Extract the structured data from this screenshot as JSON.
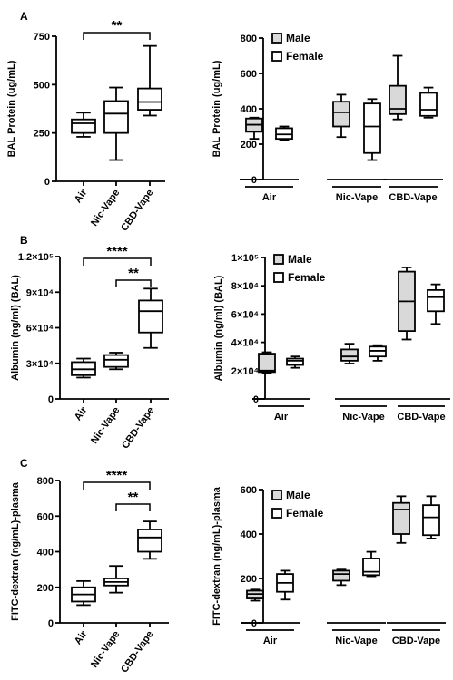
{
  "chart_data": [
    {
      "type": "box",
      "panel_label": "A",
      "ylabel": "BAL Protein (ug/mL)",
      "ylim": [
        0,
        750
      ],
      "yticks": [
        0,
        250,
        500,
        750
      ],
      "ytick_labels": [
        "0",
        "250",
        "500",
        "750"
      ],
      "categories": [
        "Air",
        "Nic-Vape",
        "CBD-Vape"
      ],
      "boxes": [
        {
          "min": 230,
          "q1": 250,
          "median": 300,
          "q3": 320,
          "max": 355
        },
        {
          "min": 110,
          "q1": 250,
          "median": 350,
          "q3": 415,
          "max": 485
        },
        {
          "min": 340,
          "q1": 370,
          "median": 410,
          "q3": 480,
          "max": 700
        }
      ],
      "significance": [
        {
          "from": 0,
          "to": 2,
          "label": "**"
        }
      ]
    },
    {
      "type": "box",
      "ylabel": "BAL Protein (ug/mL)",
      "ylim": [
        0,
        800
      ],
      "yticks": [
        0,
        200,
        400,
        600,
        800
      ],
      "ytick_labels": [
        "0",
        "200",
        "400",
        "600",
        "800"
      ],
      "groups": [
        "Air",
        "Nic-Vape",
        "CBD-Vape"
      ],
      "legend": [
        "Male",
        "Female"
      ],
      "series": [
        {
          "name": "Male",
          "boxes": [
            {
              "min": 230,
              "q1": 270,
              "median": 310,
              "q3": 345,
              "max": 350
            },
            {
              "min": 240,
              "q1": 300,
              "median": 380,
              "q3": 440,
              "max": 480
            },
            {
              "min": 340,
              "q1": 370,
              "median": 400,
              "q3": 530,
              "max": 700
            }
          ]
        },
        {
          "name": "Female",
          "boxes": [
            {
              "min": 225,
              "q1": 230,
              "median": 255,
              "q3": 290,
              "max": 300
            },
            {
              "min": 110,
              "q1": 150,
              "median": 300,
              "q3": 430,
              "max": 455
            },
            {
              "min": 350,
              "q1": 360,
              "median": 395,
              "q3": 490,
              "max": 520
            }
          ]
        }
      ]
    },
    {
      "type": "box",
      "panel_label": "B",
      "ylabel": "Albumin (ng/ml) (BAL)",
      "ylim": [
        0,
        120000
      ],
      "yticks": [
        0,
        30000,
        60000,
        90000,
        120000
      ],
      "ytick_labels": [
        "0",
        "3×10⁴",
        "6×10⁴",
        "9×10⁴",
        "1.2×10⁵"
      ],
      "categories": [
        "Air",
        "Nic-Vape",
        "CBD-Vape"
      ],
      "boxes": [
        {
          "min": 18000,
          "q1": 20000,
          "median": 25000,
          "q3": 31000,
          "max": 34000
        },
        {
          "min": 25000,
          "q1": 27000,
          "median": 33000,
          "q3": 37000,
          "max": 39000
        },
        {
          "min": 43000,
          "q1": 56000,
          "median": 74000,
          "q3": 83000,
          "max": 93000
        }
      ],
      "significance": [
        {
          "from": 0,
          "to": 2,
          "label": "****"
        },
        {
          "from": 1,
          "to": 2,
          "label": "**"
        }
      ]
    },
    {
      "type": "box",
      "ylabel": "Albumin (ng/ml) (BAL)",
      "ylim": [
        0,
        100000
      ],
      "yticks": [
        0,
        20000,
        40000,
        60000,
        80000,
        100000
      ],
      "ytick_labels": [
        "0",
        "2×10⁴",
        "4×10⁴",
        "6×10⁴",
        "8×10⁴",
        "1×10⁵"
      ],
      "groups": [
        "Air",
        "Nic-Vape",
        "CBD-Vape"
      ],
      "legend": [
        "Male",
        "Female"
      ],
      "series": [
        {
          "name": "Male",
          "boxes": [
            {
              "min": 18000,
              "q1": 19000,
              "median": 20000,
              "q3": 32000,
              "max": 33000
            },
            {
              "min": 25000,
              "q1": 27000,
              "median": 30000,
              "q3": 35000,
              "max": 39000
            },
            {
              "min": 42000,
              "q1": 48000,
              "median": 69000,
              "q3": 90000,
              "max": 93000
            }
          ]
        },
        {
          "name": "Female",
          "boxes": [
            {
              "min": 22000,
              "q1": 24000,
              "median": 27000,
              "q3": 28500,
              "max": 30000
            },
            {
              "min": 27000,
              "q1": 30000,
              "median": 34000,
              "q3": 37000,
              "max": 38000
            },
            {
              "min": 53000,
              "q1": 62000,
              "median": 72000,
              "q3": 77000,
              "max": 81000
            }
          ]
        }
      ]
    },
    {
      "type": "box",
      "panel_label": "C",
      "ylabel": "FITC-dextran (ng/mL)-plasma",
      "ylim": [
        0,
        800
      ],
      "yticks": [
        0,
        200,
        400,
        600,
        800
      ],
      "ytick_labels": [
        "0",
        "200",
        "400",
        "600",
        "800"
      ],
      "categories": [
        "Air",
        "Nic-Vape",
        "CBD-Vape"
      ],
      "boxes": [
        {
          "min": 100,
          "q1": 120,
          "median": 160,
          "q3": 200,
          "max": 235
        },
        {
          "min": 170,
          "q1": 210,
          "median": 230,
          "q3": 250,
          "max": 320
        },
        {
          "min": 360,
          "q1": 400,
          "median": 480,
          "q3": 525,
          "max": 570
        }
      ],
      "significance": [
        {
          "from": 0,
          "to": 2,
          "label": "****"
        },
        {
          "from": 1,
          "to": 2,
          "label": "**"
        }
      ]
    },
    {
      "type": "box",
      "ylabel": "FITC-dextran (ng/mL)-plasma",
      "ylim": [
        0,
        600
      ],
      "yticks": [
        0,
        200,
        400,
        600
      ],
      "ytick_labels": [
        "0",
        "200",
        "400",
        "600"
      ],
      "groups": [
        "Air",
        "Nic-Vape",
        "CBD-Vape"
      ],
      "legend": [
        "Male",
        "Female"
      ],
      "series": [
        {
          "name": "Male",
          "boxes": [
            {
              "min": 100,
              "q1": 110,
              "median": 130,
              "q3": 145,
              "max": 150
            },
            {
              "min": 170,
              "q1": 190,
              "median": 220,
              "q3": 235,
              "max": 240
            },
            {
              "min": 360,
              "q1": 400,
              "median": 510,
              "q3": 540,
              "max": 570
            }
          ]
        },
        {
          "name": "Female",
          "boxes": [
            {
              "min": 105,
              "q1": 140,
              "median": 180,
              "q3": 220,
              "max": 235
            },
            {
              "min": 210,
              "q1": 215,
              "median": 230,
              "q3": 290,
              "max": 320
            },
            {
              "min": 380,
              "q1": 395,
              "median": 475,
              "q3": 530,
              "max": 570
            }
          ]
        }
      ]
    }
  ],
  "colors": {
    "stroke": "#000000",
    "male_fill": "#d9d9d9",
    "female_fill": "#ffffff",
    "box_fill": "#ffffff"
  }
}
